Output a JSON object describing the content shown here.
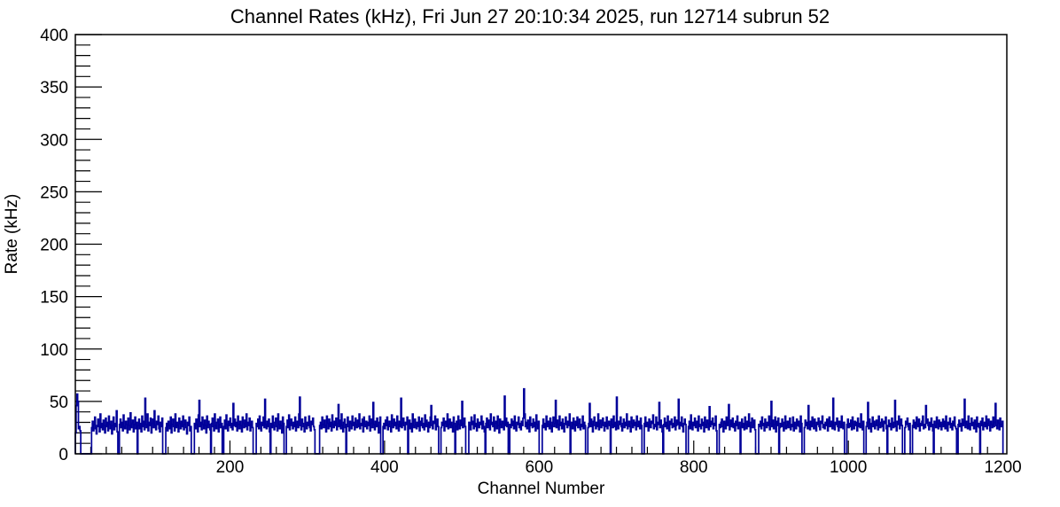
{
  "chart_data": {
    "type": "bar",
    "style": "step-outline-histogram",
    "title": "Channel Rates (kHz), Fri Jun 27 20:10:34 2025, run 12714 subrun 52",
    "xlabel": "Channel Number",
    "ylabel": "Rate (kHz)",
    "xlim": [
      0,
      1205
    ],
    "ylim": [
      0,
      400
    ],
    "x_major_ticks": [
      200,
      400,
      600,
      800,
      1000,
      1200
    ],
    "x_minor_step": 20,
    "y_major_ticks": [
      0,
      50,
      100,
      150,
      200,
      250,
      300,
      350,
      400
    ],
    "y_minor_step": 10,
    "grid": "off",
    "legend": "none",
    "line_color": "#000099",
    "axis_color": "#000000",
    "background_color": "#ffffff",
    "values": [
      20,
      46,
      57,
      50,
      24,
      26,
      22,
      0,
      0,
      0,
      0,
      0,
      0,
      0,
      0,
      0,
      0,
      0,
      0,
      0,
      0,
      25,
      31,
      22,
      28,
      35,
      24,
      19,
      27,
      33,
      26,
      21,
      38,
      25,
      29,
      23,
      32,
      27,
      20,
      34,
      26,
      30,
      22,
      36,
      28,
      24,
      31,
      19,
      27,
      35,
      23,
      29,
      26,
      41,
      21,
      0,
      0,
      28,
      33,
      25,
      30,
      22,
      37,
      26,
      24,
      31,
      28,
      20,
      34,
      27,
      23,
      39,
      25,
      29,
      32,
      21,
      28,
      35,
      24,
      30,
      0,
      27,
      33,
      24,
      29,
      21,
      36,
      26,
      31,
      23,
      53,
      28,
      25,
      38,
      22,
      30,
      27,
      34,
      20,
      29,
      33,
      25,
      41,
      27,
      23,
      31,
      28,
      36,
      24,
      21,
      30,
      26,
      34,
      0,
      0,
      0,
      0,
      25,
      29,
      22,
      31,
      27,
      24,
      35,
      20,
      28,
      33,
      26,
      22,
      38,
      25,
      30,
      27,
      21,
      34,
      29,
      24,
      31,
      26,
      36,
      23,
      28,
      32,
      25,
      19,
      30,
      27,
      35,
      22,
      26,
      0,
      0,
      0,
      0,
      29,
      24,
      33,
      28,
      21,
      37,
      51,
      26,
      30,
      23,
      35,
      28,
      24,
      32,
      27,
      20,
      36,
      25,
      31,
      28,
      23,
      0,
      29,
      34,
      26,
      22,
      38,
      27,
      24,
      30,
      33,
      21,
      28,
      35,
      25,
      29,
      0,
      0,
      26,
      32,
      24,
      37,
      28,
      22,
      31,
      27,
      34,
      25,
      29,
      23,
      48,
      27,
      33,
      26,
      30,
      22,
      36,
      28,
      24,
      31,
      27,
      21,
      35,
      29,
      25,
      32,
      26,
      38,
      23,
      30,
      27,
      34,
      22,
      28,
      31,
      25,
      0,
      0,
      0,
      0,
      29,
      26,
      33,
      24,
      36,
      28,
      22,
      30,
      27,
      35,
      25,
      52,
      28,
      24,
      31,
      26,
      33,
      21,
      0,
      29,
      25,
      36,
      27,
      23,
      30,
      34,
      26,
      22,
      38,
      28,
      24,
      31,
      27,
      20,
      35,
      29,
      0,
      0,
      0,
      26,
      32,
      25,
      37,
      23,
      29,
      33,
      27,
      24,
      30,
      26,
      35,
      22,
      28,
      31,
      25,
      38,
      54,
      27,
      23,
      33,
      29,
      26,
      21,
      35,
      28,
      24,
      30,
      27,
      36,
      25,
      22,
      31,
      28,
      34,
      26,
      23,
      0,
      0,
      0,
      0,
      0,
      0,
      27,
      30,
      24,
      35,
      28,
      25,
      32,
      27,
      21,
      36,
      29,
      24,
      33,
      26,
      30,
      22,
      37,
      28,
      25,
      31,
      27,
      34,
      23,
      29,
      47,
      26,
      32,
      24,
      38,
      27,
      21,
      30,
      33,
      25,
      0,
      28,
      35,
      26,
      22,
      31,
      29,
      24,
      36,
      27,
      30,
      23,
      34,
      28,
      25,
      32,
      26,
      38,
      24,
      29,
      27,
      33,
      21,
      35,
      28,
      26,
      31,
      24,
      30,
      27,
      36,
      22,
      29,
      33,
      25,
      49,
      28,
      23,
      31,
      26,
      34,
      27,
      20,
      30,
      35,
      0,
      0,
      0,
      26,
      29,
      24,
      32,
      27,
      35,
      23,
      28,
      31,
      26,
      21,
      37,
      29,
      25,
      33,
      27,
      30,
      24,
      36,
      28,
      22,
      31,
      26,
      53,
      25,
      29,
      34,
      27,
      23,
      30,
      28,
      35,
      0,
      26,
      32,
      24,
      29,
      21,
      38,
      27,
      25,
      33,
      28,
      24,
      30,
      26,
      35,
      22,
      31,
      27,
      34,
      25,
      29,
      23,
      37,
      26,
      32,
      28,
      21,
      30,
      25,
      35,
      46,
      27,
      24,
      31,
      29,
      36,
      23,
      28,
      33,
      26,
      0,
      0,
      0,
      25,
      30,
      27,
      34,
      22,
      29,
      31,
      26,
      38,
      24,
      28,
      33,
      25,
      30,
      27,
      21,
      35,
      29,
      0,
      26,
      31,
      23,
      36,
      28,
      24,
      32,
      27,
      50,
      25,
      29,
      34,
      26,
      0,
      0,
      0,
      0,
      30,
      27,
      23,
      35,
      28,
      31,
      24,
      37,
      26,
      29,
      22,
      33,
      27,
      25,
      30,
      28,
      36,
      24,
      31,
      26,
      21,
      0,
      29,
      34,
      25,
      32,
      27,
      23,
      38,
      28,
      30,
      26,
      35,
      22,
      29,
      31,
      24,
      36,
      27,
      20,
      33,
      28,
      25,
      31,
      29,
      23,
      55,
      27,
      34,
      26,
      30,
      0,
      0,
      28,
      25,
      33,
      27,
      31,
      24,
      36,
      26,
      22,
      30,
      28,
      35,
      25,
      29,
      23,
      31,
      27,
      34,
      62,
      38,
      26,
      30,
      24,
      32,
      28,
      21,
      35,
      27,
      29,
      25,
      33,
      26,
      30,
      22,
      37,
      28,
      24,
      31,
      0,
      0,
      0,
      0,
      27,
      33,
      25,
      29,
      23,
      36,
      26,
      31,
      28,
      24,
      34,
      27,
      21,
      30,
      35,
      26,
      29,
      51,
      25,
      32,
      28,
      23,
      36,
      27,
      30,
      24,
      33,
      26,
      21,
      29,
      35,
      28,
      25,
      31,
      27,
      38,
      0,
      26,
      30,
      24,
      34,
      28,
      22,
      31,
      27,
      35,
      25,
      29,
      33,
      23,
      28,
      26,
      36,
      24,
      30,
      27,
      0,
      0,
      0,
      25,
      29,
      48,
      26,
      33,
      28,
      21,
      31,
      35,
      27,
      24,
      30,
      26,
      38,
      23,
      29,
      32,
      25,
      28,
      34,
      27,
      22,
      30,
      26,
      35,
      24,
      29,
      31,
      27,
      0,
      33,
      28,
      25,
      36,
      26,
      30,
      23,
      54,
      27,
      24,
      31,
      28,
      35,
      26,
      22,
      29,
      33,
      25,
      30,
      27,
      38,
      24,
      28,
      31,
      26,
      21,
      35,
      29,
      25,
      32,
      27,
      30,
      23,
      36,
      28,
      26,
      31,
      24,
      34,
      27,
      0,
      0,
      0,
      29,
      35,
      26,
      30,
      28,
      22,
      33,
      27,
      25,
      31,
      29,
      37,
      24,
      28,
      26,
      35,
      23,
      30,
      28,
      49,
      25,
      32,
      27,
      21,
      0,
      28,
      34,
      26,
      30,
      24,
      36,
      27,
      22,
      31,
      28,
      33,
      25,
      29,
      26,
      35,
      23,
      27,
      32,
      28,
      52,
      24,
      30,
      27,
      35,
      26,
      21,
      29,
      33,
      28,
      0,
      0,
      0,
      26,
      31,
      24,
      37,
      28,
      23,
      30,
      27,
      34,
      25,
      29,
      31,
      22,
      36,
      26,
      28,
      24,
      33,
      27,
      30,
      21,
      35,
      28,
      25,
      32,
      29,
      23,
      45,
      26,
      31,
      28,
      34,
      24,
      29,
      27,
      36,
      22,
      0,
      0,
      0,
      28,
      25,
      30,
      33,
      26,
      21,
      31,
      29,
      24,
      35,
      27,
      30,
      47,
      23,
      28,
      32,
      26,
      34,
      25,
      29,
      22,
      31,
      27,
      36,
      24,
      28,
      30,
      0,
      26,
      33,
      25,
      29,
      23,
      35,
      28,
      24,
      31,
      26,
      38,
      27,
      21,
      30,
      34,
      25,
      28,
      32,
      23,
      0,
      0,
      0,
      0,
      28,
      26,
      31,
      24,
      35,
      27,
      29,
      22,
      33,
      28,
      25,
      30,
      27,
      36,
      23,
      29,
      50,
      26,
      32,
      24,
      28,
      35,
      21,
      31,
      27,
      34,
      0,
      25,
      29,
      26,
      33,
      28,
      22,
      30,
      36,
      24,
      27,
      31,
      25,
      29,
      34,
      23,
      28,
      26,
      35,
      22,
      30,
      28,
      24,
      33,
      27,
      31,
      26,
      21,
      36,
      29,
      0,
      0,
      0,
      25,
      32,
      27,
      30,
      24,
      46,
      28,
      23,
      31,
      26,
      35,
      29,
      24,
      33,
      27,
      22,
      30,
      28,
      34,
      26,
      23,
      31,
      29,
      36,
      25,
      28,
      24,
      30,
      27,
      33,
      22,
      29,
      35,
      26,
      28,
      31,
      24,
      53,
      27,
      23,
      30,
      28,
      34,
      26,
      22,
      31,
      29,
      25,
      36,
      27,
      24,
      30,
      0,
      0,
      0,
      28,
      33,
      25,
      29,
      26,
      32,
      23,
      35,
      28,
      24,
      31,
      27,
      30,
      22,
      34,
      26,
      29,
      25,
      38,
      27,
      23,
      31,
      0,
      0,
      0,
      26,
      30,
      49,
      24,
      33,
      28,
      21,
      29,
      35,
      26,
      31,
      24,
      28,
      32,
      27,
      23,
      36,
      28,
      25,
      30,
      33,
      26,
      22,
      31,
      29,
      35,
      24,
      0,
      27,
      32,
      26,
      29,
      23,
      34,
      28,
      25,
      30,
      51,
      26,
      22,
      31,
      28,
      36,
      24,
      29,
      33,
      27,
      0,
      0,
      0,
      25,
      31,
      28,
      34,
      26,
      23,
      29,
      0,
      0,
      0,
      27,
      32,
      25,
      30,
      24,
      35,
      28,
      26,
      33,
      22,
      29,
      27,
      31,
      36,
      24,
      28,
      25,
      46,
      29,
      33,
      27,
      23,
      30,
      26,
      34,
      28,
      22,
      0,
      31,
      27,
      25,
      35,
      29,
      24,
      32,
      26,
      30,
      23,
      28,
      33,
      26,
      31,
      24,
      36,
      27,
      22,
      30,
      28,
      34,
      25,
      29,
      23,
      31,
      27,
      35,
      26,
      24,
      0,
      0,
      28,
      32,
      26,
      29,
      22,
      33,
      27,
      30,
      52,
      25,
      31,
      28,
      24,
      36,
      26,
      23,
      29,
      34,
      27,
      30,
      24,
      32,
      28,
      21,
      35,
      26,
      29,
      25,
      0,
      31,
      27,
      34,
      23,
      28,
      30,
      26,
      36,
      24,
      29,
      33,
      27,
      22,
      31,
      28,
      25,
      35,
      26,
      30,
      48,
      27,
      24,
      32,
      29,
      23,
      34,
      28,
      26,
      31
    ]
  }
}
